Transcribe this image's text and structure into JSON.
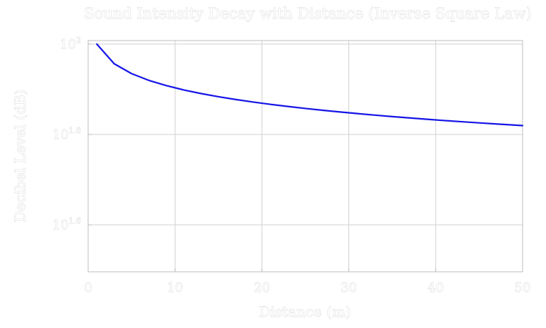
{
  "chart_data": {
    "type": "line",
    "title": "Sound Intensity Decay with Distance (Inverse Square Law)",
    "xlabel": "Distance (m)",
    "ylabel": "Decibel Level (dB)",
    "xlim": [
      0,
      50
    ],
    "ylim_log10": [
      1.4962,
      2.0078
    ],
    "yscale": "log",
    "grid": true,
    "x_ticks": [
      0,
      10,
      20,
      30,
      40,
      50
    ],
    "y_ticks": [
      {
        "base": "10",
        "exp": "1.6",
        "log10": 1.6
      },
      {
        "base": "10",
        "exp": "1.8",
        "log10": 1.8
      },
      {
        "base": "10",
        "exp": "2",
        "log10": 2.0
      }
    ],
    "series": [
      {
        "name": "Decibel Level",
        "color": "#1515e6",
        "x": [
          1,
          3,
          5,
          7,
          9,
          11,
          13,
          15,
          17,
          19,
          21,
          23,
          25,
          27,
          29,
          31,
          33,
          35,
          37,
          39,
          41,
          43,
          45,
          47,
          49,
          50
        ],
        "y": [
          100,
          90.46,
          86.02,
          83.1,
          80.92,
          79.17,
          77.72,
          76.48,
          75.39,
          74.42,
          73.56,
          72.77,
          72.04,
          71.38,
          70.76,
          70.18,
          69.63,
          69.12,
          68.64,
          68.18,
          67.74,
          67.33,
          66.94,
          66.56,
          66.2,
          66.02
        ]
      }
    ]
  }
}
